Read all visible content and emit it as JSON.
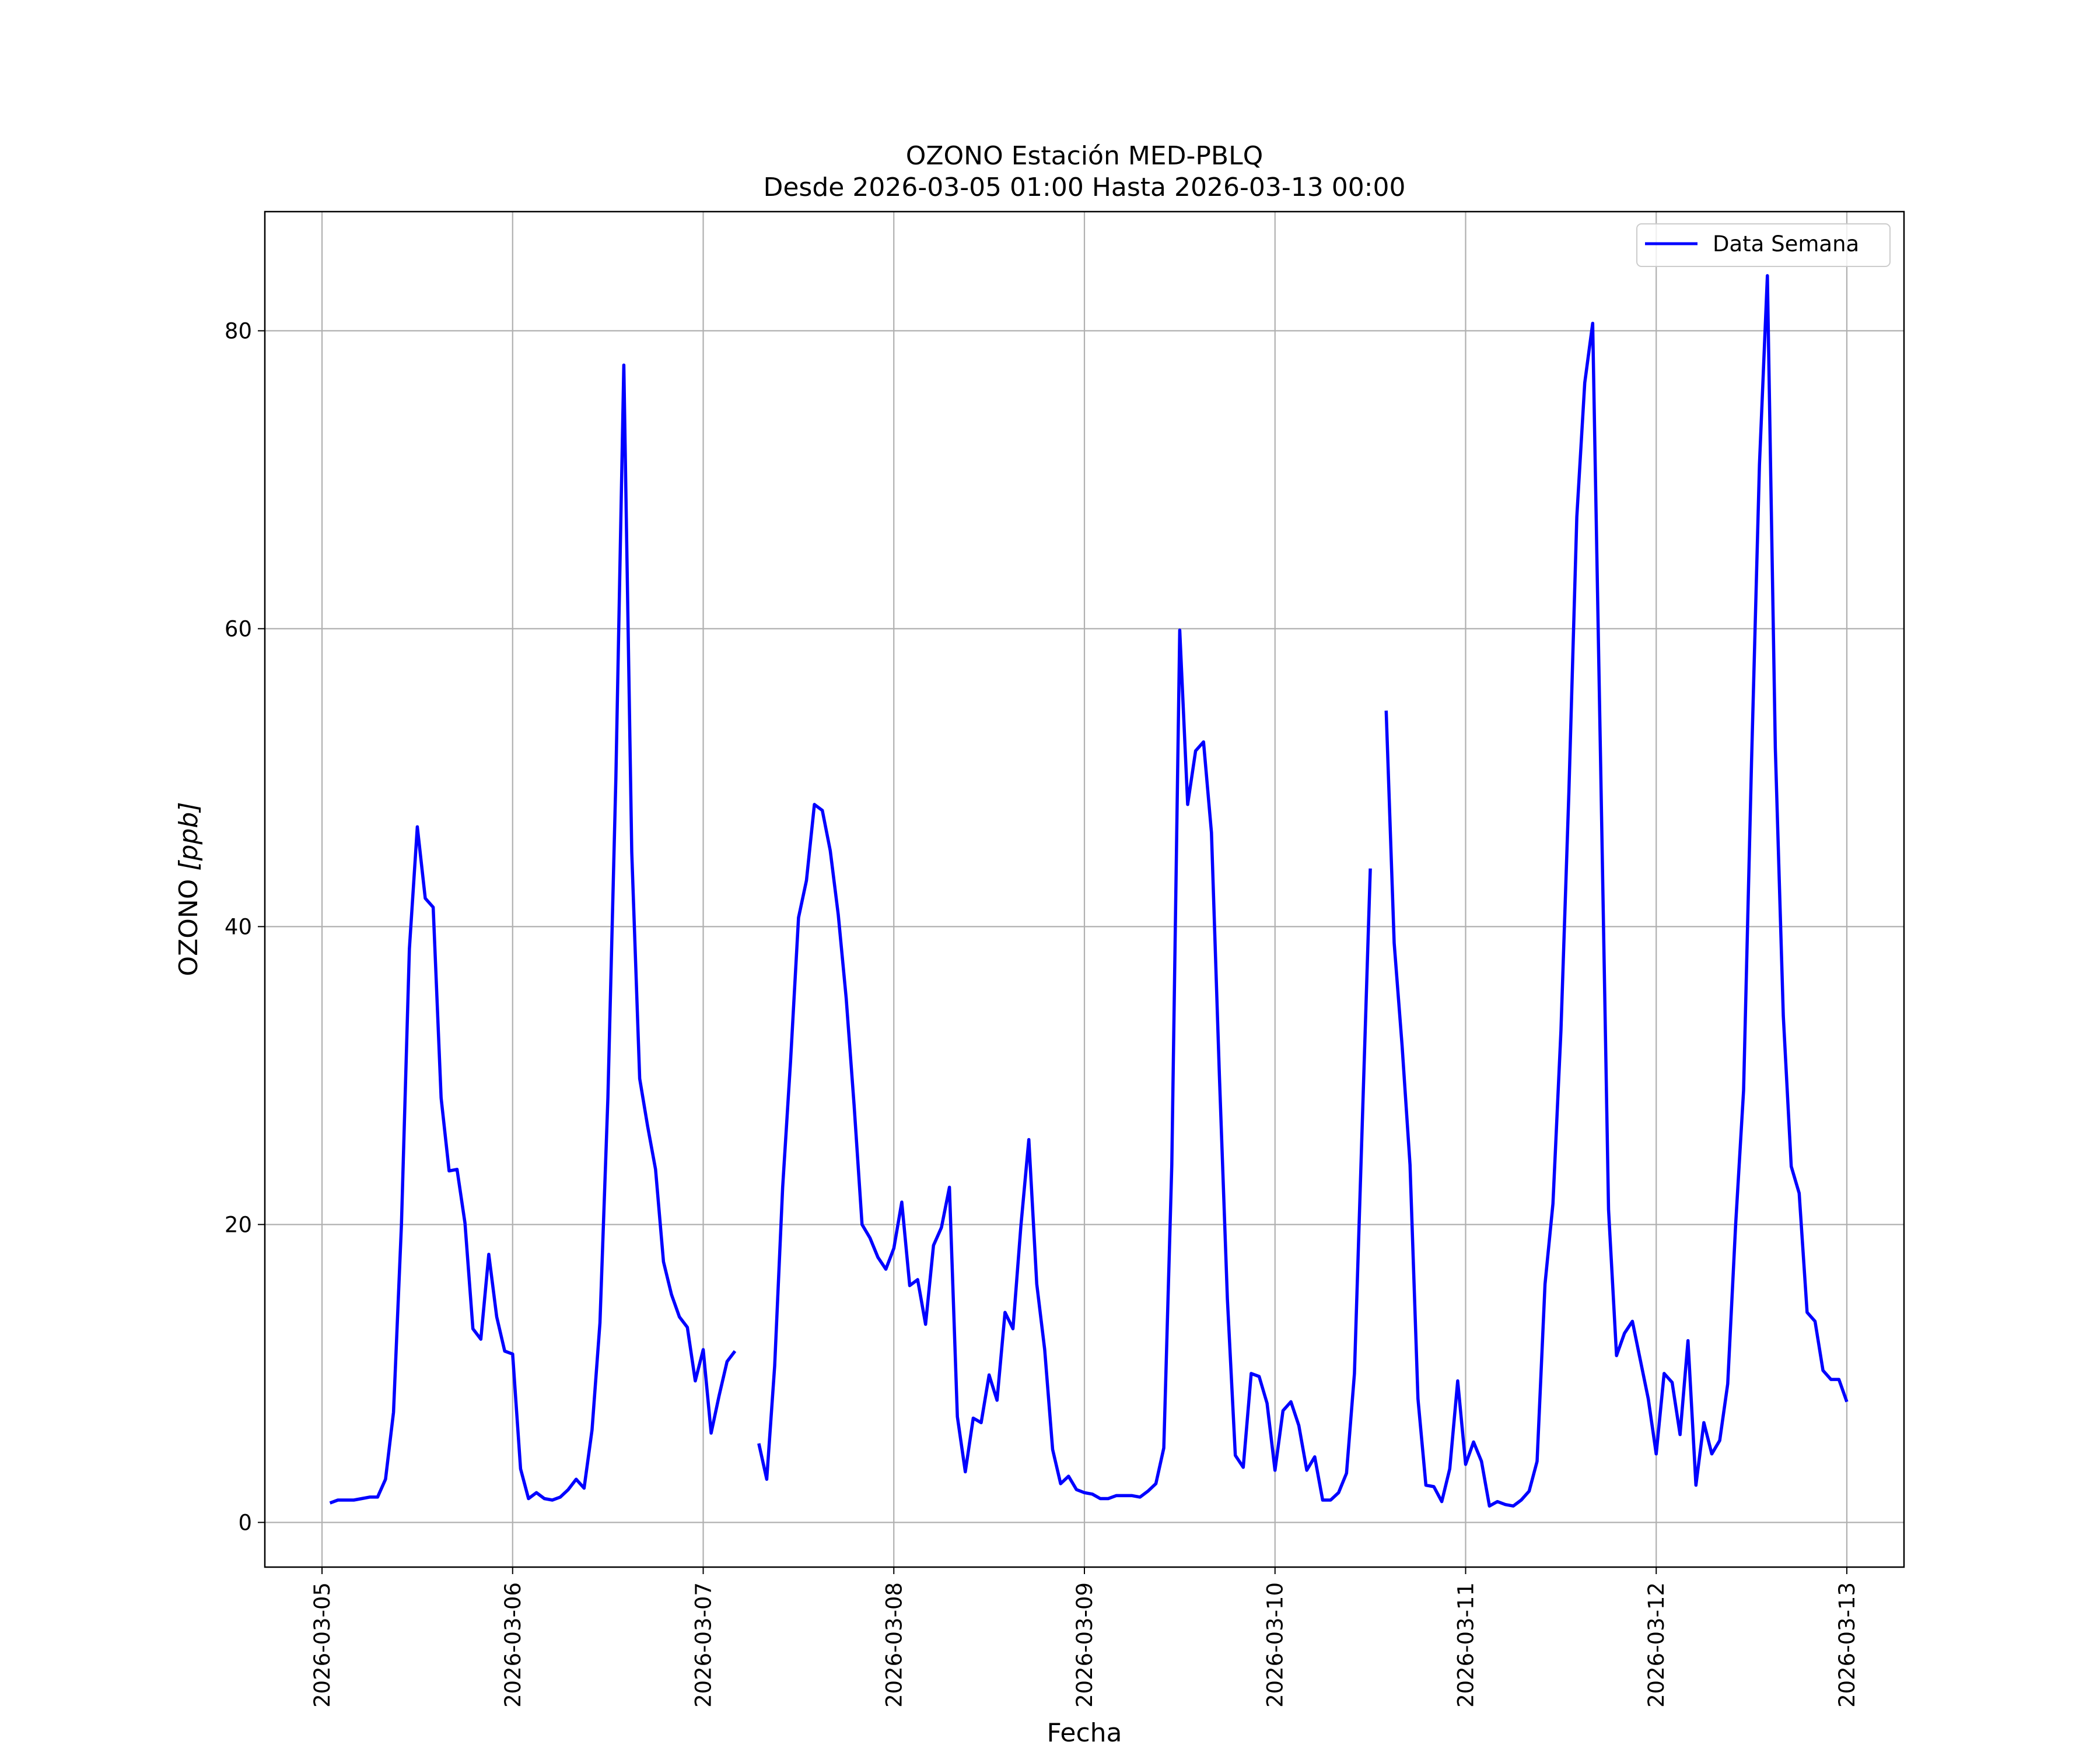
{
  "chart_data": {
    "type": "line",
    "title": "OZONO Estación MED-PBLQ",
    "subtitle": "Desde 2026-03-05 01:00 Hasta 2026-03-13 00:00",
    "xlabel": "Fecha",
    "ylabel": "OZONO [ppb]",
    "ylabel_main": "OZONO ",
    "ylabel_unit": "[ppb]",
    "xlim": [
      "2026-03-04 16:48",
      "2026-03-13 07:12"
    ],
    "ylim": [
      -3,
      88
    ],
    "x_ticks": [
      "2026-03-05",
      "2026-03-06",
      "2026-03-07",
      "2026-03-08",
      "2026-03-09",
      "2026-03-10",
      "2026-03-11",
      "2026-03-12",
      "2026-03-13"
    ],
    "y_ticks": [
      0,
      20,
      40,
      60,
      80
    ],
    "grid": true,
    "legend_position": "top-right",
    "colors": {
      "series": "#0000ff",
      "grid": "#b0b0b0"
    },
    "series": [
      {
        "name": "Data Semana",
        "start": "2026-03-05 01:00",
        "step_hours": 1,
        "values": [
          1.3,
          1.5,
          1.5,
          1.5,
          1.6,
          1.7,
          1.7,
          2.9,
          7.4,
          20.0,
          38.5,
          46.7,
          41.9,
          41.3,
          28.5,
          23.6,
          23.7,
          20.1,
          13.0,
          12.3,
          18.0,
          13.8,
          11.5,
          11.3,
          3.6,
          1.6,
          2.0,
          1.6,
          1.5,
          1.7,
          2.2,
          2.9,
          2.3,
          6.2,
          13.4,
          28.5,
          50.0,
          77.7,
          45.0,
          29.8,
          26.6,
          23.7,
          17.5,
          15.3,
          13.8,
          13.1,
          9.5,
          11.6,
          6.0,
          8.5,
          10.8,
          11.5,
          null,
          null,
          5.3,
          2.9,
          10.5,
          22.5,
          31.0,
          40.6,
          43.1,
          48.2,
          47.8,
          45.1,
          40.8,
          35.2,
          28.0,
          20.0,
          19.1,
          17.8,
          17.0,
          18.4,
          21.5,
          15.9,
          16.3,
          13.3,
          18.6,
          19.8,
          22.5,
          7.1,
          3.4,
          7.0,
          6.7,
          9.9,
          8.2,
          14.1,
          13.0,
          19.9,
          25.7,
          16.0,
          11.6,
          4.9,
          2.6,
          3.1,
          2.2,
          2.0,
          1.9,
          1.6,
          1.6,
          1.8,
          1.8,
          1.8,
          1.7,
          2.1,
          2.6,
          5.0,
          24.0,
          59.9,
          48.2,
          51.8,
          52.4,
          46.3,
          30.0,
          15.0,
          4.5,
          3.7,
          10.0,
          9.8,
          8.0,
          3.5,
          7.5,
          8.1,
          6.5,
          3.5,
          4.4,
          1.5,
          1.5,
          2.0,
          3.3,
          10.0,
          27.0,
          43.9,
          null,
          54.5,
          38.9,
          32.0,
          24.0,
          8.3,
          2.5,
          2.4,
          1.4,
          3.6,
          9.5,
          3.9,
          5.4,
          4.1,
          1.1,
          1.4,
          1.2,
          1.1,
          1.5,
          2.1,
          4.1,
          16.0,
          21.4,
          33.0,
          49.0,
          67.5,
          76.5,
          80.5,
          51.0,
          21.0,
          11.2,
          12.7,
          13.5,
          10.9,
          8.3,
          4.6,
          10.0,
          9.4,
          5.9,
          12.2,
          2.5,
          6.7,
          4.6,
          5.5,
          9.3,
          20.0,
          29.0,
          51.0,
          71.0,
          83.7,
          52.0,
          34.0,
          23.9,
          22.1,
          14.1,
          13.5,
          10.2,
          9.6,
          9.6,
          8.1
        ]
      }
    ]
  }
}
